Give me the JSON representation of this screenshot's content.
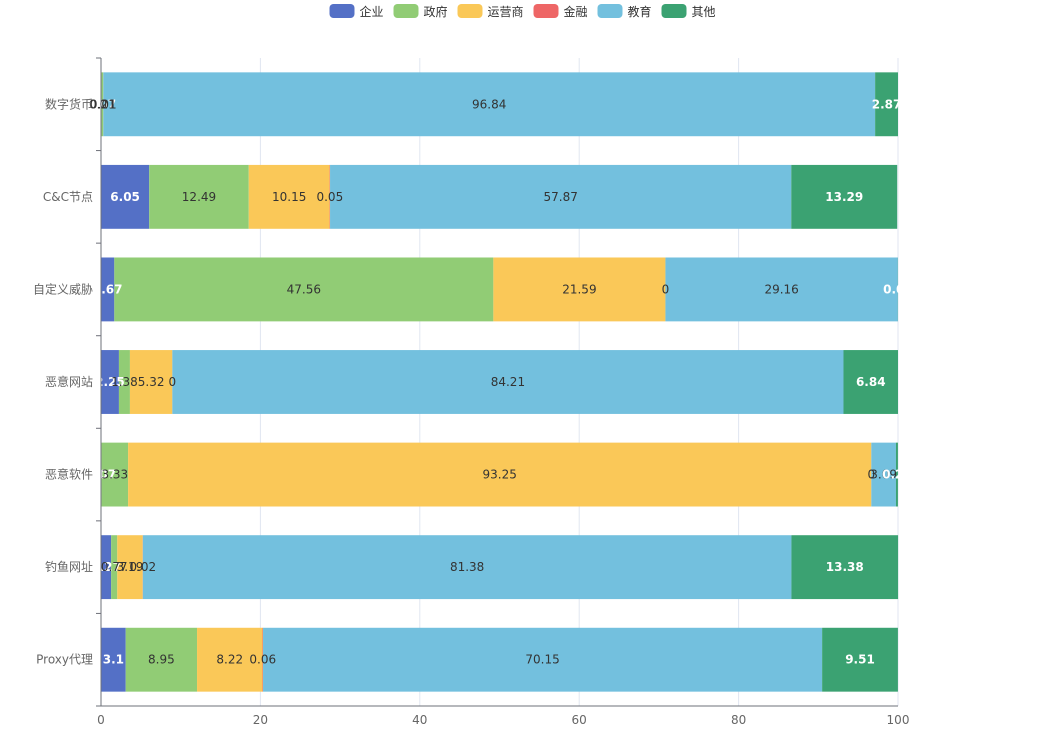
{
  "chart_data": {
    "type": "bar",
    "orientation": "horizontal",
    "stacked": true,
    "categories": [
      "数字货币",
      "C&C节点",
      "自定义威胁",
      "恶意网站",
      "恶意软件",
      "钓鱼网址",
      "Proxy代理"
    ],
    "series": [
      {
        "name": "企业",
        "color": "#5470c6",
        "values": [
          0.07,
          6.05,
          1.67,
          2.25,
          0.07,
          1.27,
          3.1
        ]
      },
      {
        "name": "政府",
        "color": "#91cc75",
        "values": [
          0.21,
          12.49,
          47.56,
          1.38,
          3.33,
          0.77,
          8.95
        ]
      },
      {
        "name": "运营商",
        "color": "#fac858",
        "values": [
          0.01,
          10.15,
          21.59,
          5.32,
          93.25,
          3.19,
          8.22
        ]
      },
      {
        "name": "金融",
        "color": "#ee6666",
        "values": [
          0,
          0.05,
          0,
          0,
          0,
          0.02,
          0.06
        ]
      },
      {
        "name": "教育",
        "color": "#73c0de",
        "values": [
          96.84,
          57.87,
          29.16,
          84.21,
          3.09,
          81.38,
          70.15
        ]
      },
      {
        "name": "其他",
        "color": "#3ba272",
        "values": [
          2.87,
          13.29,
          0.02,
          6.84,
          0.25,
          13.38,
          9.51
        ]
      }
    ],
    "xlim": [
      0,
      100
    ],
    "xticks": [
      0,
      20,
      40,
      60,
      80,
      100
    ],
    "legend_position": "top-center",
    "grid": "vertical"
  }
}
